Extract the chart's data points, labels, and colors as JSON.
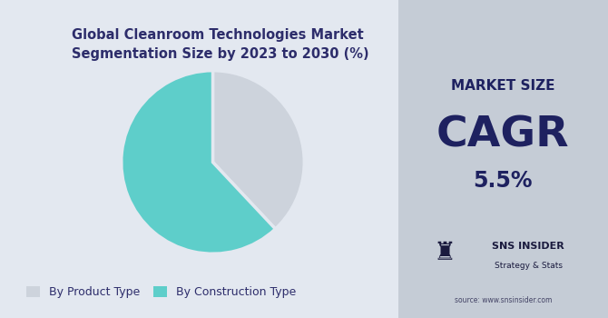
{
  "title": "Global Cleanroom Technologies Market\nSegmentation Size by 2023 to 2030 (%)",
  "title_fontsize": 10.5,
  "title_color": "#2d2d6b",
  "pie_values": [
    38,
    62
  ],
  "pie_labels": [
    "By Product Type",
    "By Construction Type"
  ],
  "pie_colors": [
    "#cdd3dc",
    "#5ececa"
  ],
  "pie_startangle": 90,
  "left_bg_color": "#e3e8f0",
  "right_bg_color": "#c5ccd6",
  "market_size_label": "MARKET SIZE",
  "cagr_label": "CAGR",
  "cagr_value": "5.5%",
  "source_text": "source: www.snsinsider.com",
  "sns_label": "SNS INSIDER",
  "sns_sublabel": "Strategy & Stats",
  "text_color": "#1e2160",
  "figsize": [
    6.7,
    3.5
  ],
  "dpi": 100
}
